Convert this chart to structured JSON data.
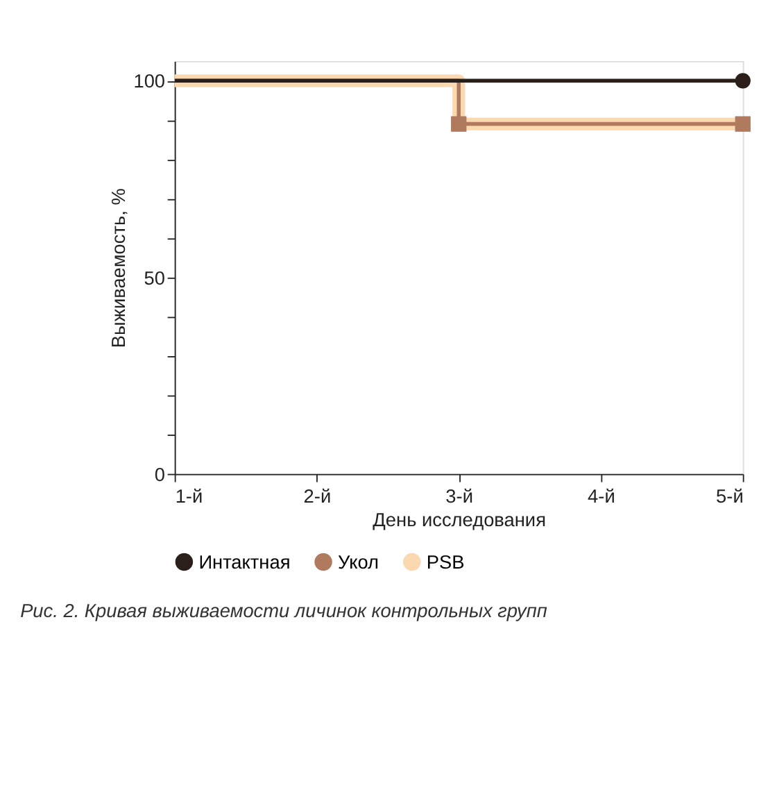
{
  "chart_data": {
    "type": "step",
    "xlabel": "День исследования",
    "ylabel": "Выживаемость, %",
    "xlim": [
      1,
      5
    ],
    "xticks": [
      {
        "value": 1,
        "label": "1-й"
      },
      {
        "value": 2,
        "label": "2-й"
      },
      {
        "value": 3,
        "label": "3-й"
      },
      {
        "value": 4,
        "label": "4-й"
      },
      {
        "value": 5,
        "label": "5-й"
      }
    ],
    "ylim": [
      0,
      105
    ],
    "yticks": [
      0,
      {
        "value": 10,
        "label": null
      },
      {
        "value": 20,
        "label": null
      },
      {
        "value": 30,
        "label": null
      },
      {
        "value": 40,
        "label": null
      },
      50,
      {
        "value": 60,
        "label": null
      },
      {
        "value": 70,
        "label": null
      },
      {
        "value": 80,
        "label": null
      },
      {
        "value": 90,
        "label": null
      },
      100
    ],
    "series": [
      {
        "name": "Интактная",
        "color": "#2b2019",
        "marker": "circle",
        "x": [
          1,
          5
        ],
        "values": [
          100,
          100
        ]
      },
      {
        "name": "Укол",
        "color": "#b07a5e",
        "marker": "square",
        "x": [
          1,
          3,
          5
        ],
        "values": [
          100,
          89,
          89
        ]
      },
      {
        "name": "PSB",
        "color": "#fbd9b0",
        "marker": "triangle",
        "x": [
          1,
          3,
          5
        ],
        "values": [
          100,
          89,
          89
        ]
      }
    ],
    "legend": "bottom",
    "grid": false,
    "annotations": [
      "Рис. 2. Кривая выживаемости личинок контрольных групп"
    ]
  }
}
